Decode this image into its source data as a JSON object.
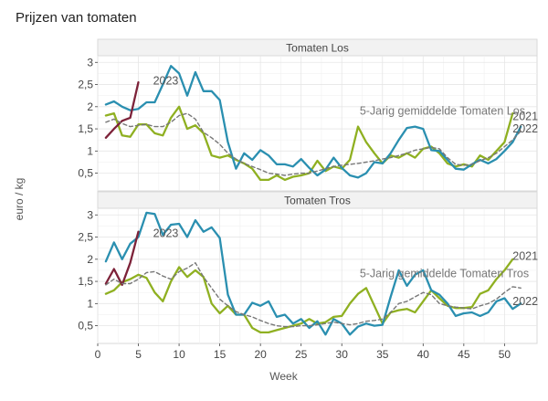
{
  "title": "Prijzen van tomaten",
  "colors": {
    "2021": "#8fb021",
    "2022": "#2a8fb0",
    "2023": "#7d2239",
    "avg": "#777777"
  },
  "chart_data": [
    {
      "type": "line",
      "panel": "Tomaten Los",
      "xlabel": "Week",
      "ylabel": "euro / kg",
      "xlim": [
        0,
        54
      ],
      "ylim": [
        0.1,
        3.15
      ],
      "xticks": [
        0,
        5,
        10,
        15,
        20,
        25,
        30,
        35,
        40,
        45,
        50
      ],
      "yticks": [
        0.5,
        1,
        1.5,
        2,
        2.5,
        3
      ],
      "ytick_labels": [
        "0,5",
        "1",
        "1,5",
        "2",
        "2,5",
        "3"
      ],
      "grid": true,
      "series": [
        {
          "name": "2021",
          "color_key": "2021",
          "dashed": false,
          "x": [
            1,
            2,
            3,
            4,
            5,
            6,
            7,
            8,
            9,
            10,
            11,
            12,
            13,
            14,
            15,
            16,
            17,
            18,
            19,
            20,
            21,
            22,
            23,
            24,
            25,
            26,
            27,
            28,
            29,
            30,
            31,
            32,
            33,
            34,
            35,
            36,
            37,
            38,
            39,
            40,
            41,
            42,
            43,
            44,
            45,
            46,
            47,
            48,
            49,
            50,
            51
          ],
          "values": [
            1.8,
            1.85,
            1.35,
            1.32,
            1.6,
            1.6,
            1.4,
            1.35,
            1.75,
            2.0,
            1.5,
            1.58,
            1.4,
            0.9,
            0.85,
            0.9,
            0.8,
            0.72,
            0.6,
            0.35,
            0.35,
            0.45,
            0.35,
            0.42,
            0.45,
            0.5,
            0.78,
            0.55,
            0.65,
            0.6,
            0.8,
            1.55,
            1.2,
            0.95,
            0.72,
            0.9,
            0.85,
            0.95,
            0.85,
            1.05,
            1.1,
            0.95,
            0.72,
            0.65,
            0.7,
            0.65,
            0.9,
            0.8,
            1.0,
            1.2,
            1.85
          ],
          "label": "2021",
          "label_pos": [
            51,
            1.78
          ]
        },
        {
          "name": "2022",
          "color_key": "2022",
          "dashed": false,
          "x": [
            1,
            2,
            3,
            4,
            5,
            6,
            7,
            8,
            9,
            10,
            11,
            12,
            13,
            14,
            15,
            16,
            17,
            18,
            19,
            20,
            21,
            22,
            23,
            24,
            25,
            26,
            27,
            28,
            29,
            30,
            31,
            32,
            33,
            34,
            35,
            36,
            37,
            38,
            39,
            40,
            41,
            42,
            43,
            44,
            45,
            46,
            47,
            48,
            49,
            50,
            51,
            52
          ],
          "values": [
            2.05,
            2.12,
            2.0,
            1.92,
            1.95,
            2.1,
            2.1,
            2.5,
            2.92,
            2.75,
            2.25,
            2.78,
            2.35,
            2.35,
            2.15,
            1.2,
            0.6,
            0.95,
            0.8,
            1.02,
            0.9,
            0.7,
            0.7,
            0.65,
            0.82,
            0.62,
            0.45,
            0.58,
            0.85,
            0.62,
            0.45,
            0.4,
            0.5,
            0.75,
            0.72,
            0.95,
            1.25,
            1.52,
            1.55,
            1.5,
            1.02,
            1.0,
            0.8,
            0.6,
            0.58,
            0.7,
            0.8,
            0.72,
            0.82,
            1.0,
            1.2,
            1.55
          ],
          "label": "2022",
          "label_pos": [
            51,
            1.5
          ]
        },
        {
          "name": "2023",
          "color_key": "2023",
          "dashed": false,
          "x": [
            1,
            2,
            3,
            4,
            5
          ],
          "values": [
            1.3,
            1.5,
            1.68,
            1.75,
            2.55
          ],
          "label": "2023",
          "label_pos": [
            6.8,
            2.58
          ]
        },
        {
          "name": "5-Jarig gemiddelde Tomaten Los",
          "color_key": "avg",
          "dashed": true,
          "x": [
            1,
            2,
            3,
            4,
            5,
            6,
            7,
            8,
            9,
            10,
            11,
            12,
            13,
            14,
            15,
            16,
            17,
            18,
            19,
            20,
            21,
            22,
            23,
            24,
            25,
            26,
            27,
            28,
            29,
            30,
            31,
            32,
            33,
            34,
            35,
            36,
            37,
            38,
            39,
            40,
            41,
            42,
            43,
            44,
            45,
            46,
            47,
            48,
            49,
            50,
            51,
            52
          ],
          "values": [
            1.65,
            1.72,
            1.62,
            1.55,
            1.58,
            1.6,
            1.55,
            1.55,
            1.65,
            1.8,
            1.85,
            1.72,
            1.42,
            1.3,
            1.15,
            0.95,
            0.82,
            0.72,
            0.65,
            0.58,
            0.5,
            0.48,
            0.45,
            0.48,
            0.5,
            0.5,
            0.55,
            0.6,
            0.65,
            0.68,
            0.7,
            0.72,
            0.75,
            0.78,
            0.82,
            0.85,
            0.9,
            0.95,
            1.02,
            1.05,
            1.08,
            1.05,
            0.85,
            0.7,
            0.68,
            0.7,
            0.78,
            0.85,
            0.95,
            1.1,
            1.25,
            1.45
          ],
          "label": "5-Jarig gemiddelde Tomaten Los",
          "label_pos": [
            32.2,
            1.9
          ]
        }
      ]
    },
    {
      "type": "line",
      "panel": "Tomaten Tros",
      "xlabel": "Week",
      "ylabel": "euro / kg",
      "xlim": [
        0,
        54
      ],
      "ylim": [
        0.1,
        3.15
      ],
      "xticks": [
        0,
        5,
        10,
        15,
        20,
        25,
        30,
        35,
        40,
        45,
        50
      ],
      "yticks": [
        0.5,
        1,
        1.5,
        2,
        2.5,
        3
      ],
      "ytick_labels": [
        "0,5",
        "1",
        "1,5",
        "2",
        "2,5",
        "3"
      ],
      "grid": true,
      "series": [
        {
          "name": "2021",
          "color_key": "2021",
          "dashed": false,
          "x": [
            1,
            2,
            3,
            4,
            5,
            6,
            7,
            8,
            9,
            10,
            11,
            12,
            13,
            14,
            15,
            16,
            17,
            18,
            19,
            20,
            21,
            22,
            23,
            24,
            25,
            26,
            27,
            28,
            29,
            30,
            31,
            32,
            33,
            34,
            35,
            36,
            37,
            38,
            39,
            40,
            41,
            42,
            43,
            44,
            45,
            46,
            47,
            48,
            49,
            50,
            51
          ],
          "values": [
            1.22,
            1.3,
            1.48,
            1.55,
            1.65,
            1.58,
            1.25,
            1.05,
            1.5,
            1.82,
            1.6,
            1.75,
            1.6,
            1.0,
            0.78,
            0.95,
            0.75,
            0.75,
            0.45,
            0.35,
            0.35,
            0.4,
            0.45,
            0.5,
            0.55,
            0.65,
            0.55,
            0.58,
            0.7,
            0.72,
            1.0,
            1.22,
            1.35,
            0.95,
            0.55,
            0.8,
            0.85,
            0.88,
            0.8,
            1.05,
            1.3,
            1.12,
            0.95,
            0.9,
            0.9,
            0.92,
            1.22,
            1.3,
            1.55,
            1.75,
            2.0
          ],
          "label": "2021",
          "label_pos": [
            51,
            2.07
          ]
        },
        {
          "name": "2022",
          "color_key": "2022",
          "dashed": false,
          "x": [
            1,
            2,
            3,
            4,
            5,
            6,
            7,
            8,
            9,
            10,
            11,
            12,
            13,
            14,
            15,
            16,
            17,
            18,
            19,
            20,
            21,
            22,
            23,
            24,
            25,
            26,
            27,
            28,
            29,
            30,
            31,
            32,
            33,
            34,
            35,
            36,
            37,
            38,
            39,
            40,
            41,
            42,
            43,
            44,
            45,
            46,
            47,
            48,
            49,
            50,
            51,
            52
          ],
          "values": [
            1.95,
            2.38,
            2.0,
            2.35,
            2.5,
            3.05,
            3.02,
            2.55,
            2.78,
            2.8,
            2.5,
            2.88,
            2.62,
            2.72,
            2.48,
            1.2,
            0.75,
            0.75,
            1.02,
            0.95,
            1.05,
            0.7,
            0.75,
            0.55,
            0.65,
            0.45,
            0.6,
            0.3,
            0.65,
            0.55,
            0.3,
            0.48,
            0.55,
            0.5,
            0.52,
            1.15,
            1.75,
            1.4,
            1.65,
            1.75,
            1.3,
            1.2,
            1.0,
            0.72,
            0.78,
            0.8,
            0.72,
            0.8,
            1.05,
            1.12,
            0.88,
            1.0
          ],
          "label": "2022",
          "label_pos": [
            51,
            1.05
          ]
        },
        {
          "name": "2023",
          "color_key": "2023",
          "dashed": false,
          "x": [
            1,
            2,
            3,
            4,
            5
          ],
          "values": [
            1.45,
            1.78,
            1.42,
            1.92,
            2.62
          ],
          "label": "2023",
          "label_pos": [
            6.8,
            2.58
          ]
        },
        {
          "name": "5-Jarig gemiddelde Tomaten Tros",
          "color_key": "avg",
          "dashed": true,
          "x": [
            1,
            2,
            3,
            4,
            5,
            6,
            7,
            8,
            9,
            10,
            11,
            12,
            13,
            14,
            15,
            16,
            17,
            18,
            19,
            20,
            21,
            22,
            23,
            24,
            25,
            26,
            27,
            28,
            29,
            30,
            31,
            32,
            33,
            34,
            35,
            36,
            37,
            38,
            39,
            40,
            41,
            42,
            43,
            44,
            45,
            46,
            47,
            48,
            49,
            50,
            51,
            52
          ],
          "values": [
            1.42,
            1.55,
            1.45,
            1.45,
            1.55,
            1.7,
            1.72,
            1.62,
            1.55,
            1.72,
            1.8,
            1.92,
            1.6,
            1.35,
            1.1,
            0.95,
            0.82,
            0.75,
            0.7,
            0.62,
            0.55,
            0.5,
            0.48,
            0.48,
            0.5,
            0.5,
            0.52,
            0.55,
            0.58,
            0.55,
            0.52,
            0.55,
            0.6,
            0.62,
            0.65,
            0.8,
            1.0,
            1.05,
            1.15,
            1.25,
            1.2,
            1.0,
            0.95,
            0.92,
            0.9,
            0.88,
            0.95,
            1.0,
            1.1,
            1.25,
            1.38,
            1.35
          ],
          "label": "5-Jarig gemiddelde Tomaten Tros",
          "label_pos": [
            32.2,
            1.68
          ]
        }
      ]
    }
  ]
}
